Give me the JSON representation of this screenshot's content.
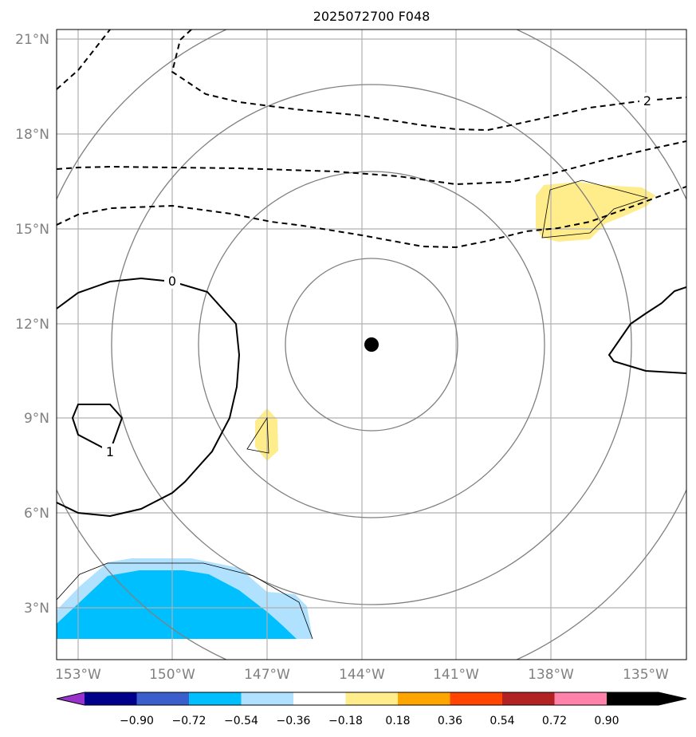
{
  "title": "2025072700 F048",
  "colors": {
    "grid": "#b0b0b0",
    "range_ring": "#808080",
    "contour": "#000000",
    "center_marker": "#000000"
  },
  "axes": {
    "lon_ticks": [
      "153°W",
      "150°W",
      "147°W",
      "144°W",
      "141°W",
      "138°W",
      "135°W"
    ],
    "lat_ticks": [
      "21°N",
      "18°N",
      "15°N",
      "12°N",
      "9°N",
      "6°N",
      "3°N"
    ]
  },
  "storm_center": {
    "lon": "143.7°W",
    "lat": "11.3°N"
  },
  "contour_labels": [
    "2",
    "0",
    "1"
  ],
  "colorbar": {
    "bins": [
      {
        "color": "#9932cc"
      },
      {
        "color": "#00008b"
      },
      {
        "color": "#3a5fcd"
      },
      {
        "color": "#00bfff"
      },
      {
        "color": "#b0e2ff"
      },
      {
        "color": "#ffffff"
      },
      {
        "color": "#ffec8b"
      },
      {
        "color": "#ffa500"
      },
      {
        "color": "#ff4500"
      },
      {
        "color": "#b22222"
      },
      {
        "color": "#ff82ab"
      }
    ],
    "labels": [
      "−0.90",
      "−0.72",
      "−0.54",
      "−0.36",
      "−0.18",
      "0.18",
      "0.36",
      "0.54",
      "0.72",
      "0.90"
    ]
  }
}
